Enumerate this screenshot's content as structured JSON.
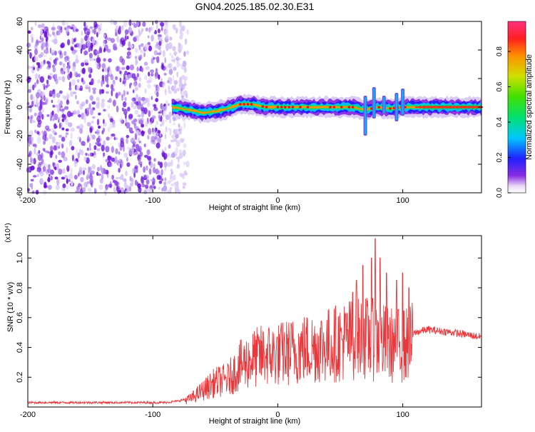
{
  "title": "GN04.2025.185.02.30.E31",
  "chart_data": [
    {
      "type": "heatmap",
      "xlabel": "Height of straight line (km)",
      "ylabel": "Frequency (Hz)",
      "xlim": [
        -200,
        163
      ],
      "ylim": [
        -60,
        60
      ],
      "x_ticks": [
        "-200",
        "-100",
        "0",
        "100"
      ],
      "y_ticks": [
        "60",
        "40",
        "20",
        "0",
        "-20",
        "-40",
        "-60"
      ],
      "colorbar": {
        "label": "Normalized spectral amplitude",
        "range": [
          0.0,
          0.97
        ],
        "ticks": [
          "0.0",
          "0.2",
          "0.4",
          "0.6",
          "0.8"
        ]
      },
      "noise_region_x": [
        -200,
        -72
      ],
      "signal_band_x": [
        -85,
        163
      ],
      "signal_centerline": [
        [
          -85,
          0
        ],
        [
          -70,
          -2
        ],
        [
          -60,
          -4
        ],
        [
          -50,
          -3
        ],
        [
          -40,
          -1
        ],
        [
          -30,
          2
        ],
        [
          -20,
          2
        ],
        [
          -10,
          0
        ],
        [
          0,
          0
        ],
        [
          20,
          0
        ],
        [
          40,
          0
        ],
        [
          60,
          0
        ],
        [
          70,
          -2
        ],
        [
          80,
          0
        ],
        [
          90,
          -1
        ],
        [
          100,
          0
        ],
        [
          120,
          0
        ],
        [
          163,
          0
        ]
      ],
      "spikes": [
        [
          70,
          -20,
          8
        ],
        [
          77,
          -8,
          14
        ],
        [
          85,
          -5,
          8
        ],
        [
          95,
          -10,
          10
        ],
        [
          100,
          -6,
          13
        ]
      ]
    },
    {
      "type": "line",
      "xlabel": "Height of straight line (km)",
      "ylabel": "SNR (10 * v/v)",
      "y_multiplier": "(x10⁴)",
      "xlim": [
        -200,
        163
      ],
      "ylim": [
        0,
        1.15
      ],
      "x_ticks": [
        "-200",
        "-100",
        "0",
        "100"
      ],
      "y_ticks": [
        "0.2",
        "0.4",
        "0.6",
        "0.8",
        "1.0"
      ],
      "line_color": "#e8383c",
      "envelope": [
        [
          -200,
          0.03
        ],
        [
          -90,
          0.03
        ],
        [
          -80,
          0.04
        ],
        [
          -70,
          0.06
        ],
        [
          -60,
          0.12
        ],
        [
          -50,
          0.18
        ],
        [
          -40,
          0.2
        ],
        [
          -30,
          0.3
        ],
        [
          -20,
          0.35
        ],
        [
          -10,
          0.38
        ],
        [
          0,
          0.38
        ],
        [
          20,
          0.42
        ],
        [
          40,
          0.45
        ],
        [
          50,
          0.47
        ],
        [
          60,
          0.5
        ],
        [
          70,
          0.5
        ],
        [
          80,
          0.48
        ],
        [
          90,
          0.45
        ],
        [
          100,
          0.45
        ],
        [
          105,
          0.45
        ],
        [
          110,
          0.5
        ],
        [
          120,
          0.52
        ],
        [
          140,
          0.5
        ],
        [
          163,
          0.47
        ]
      ],
      "peaks": [
        [
          60,
          0.77
        ],
        [
          63,
          0.85
        ],
        [
          68,
          0.95
        ],
        [
          75,
          1.0
        ],
        [
          78,
          1.13
        ],
        [
          82,
          1.0
        ],
        [
          87,
          0.9
        ],
        [
          95,
          0.85
        ],
        [
          100,
          0.9
        ],
        [
          105,
          0.8
        ]
      ]
    }
  ]
}
